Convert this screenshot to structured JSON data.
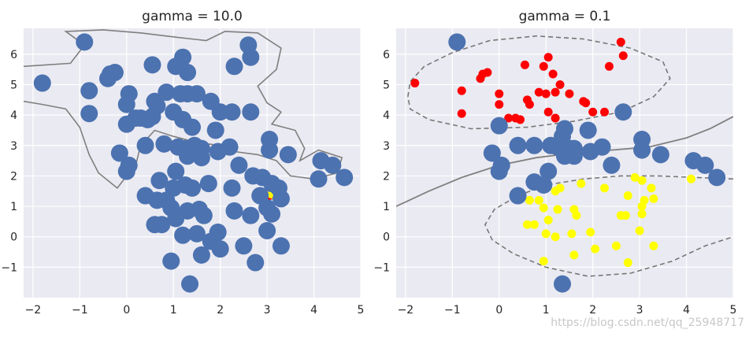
{
  "chart_data": [
    {
      "type": "scatter",
      "title": "gamma = 10.0",
      "xlim": [
        -2.2,
        5.0
      ],
      "ylim": [
        -2.0,
        6.85
      ],
      "xticks": [
        "−2",
        "−1",
        "0",
        "1",
        "2",
        "3",
        "4",
        "5"
      ],
      "xtick_values": [
        -2,
        -1,
        0,
        1,
        2,
        3,
        4,
        5
      ],
      "yticks": [
        "−1",
        "0",
        "1",
        "2",
        "3",
        "4",
        "5",
        "6"
      ],
      "ytick_values": [
        -1,
        0,
        1,
        2,
        3,
        4,
        5,
        6
      ],
      "grid": true,
      "marker_color": "#4c72b0",
      "red_points": [
        [
          3.05,
          1.35
        ]
      ],
      "yellow_points": [
        [
          3.1,
          1.4
        ]
      ],
      "boundary": [
        [
          -2.2,
          5.6
        ],
        [
          -1.2,
          5.7
        ],
        [
          -0.9,
          6.3
        ],
        [
          -1.3,
          6.75
        ],
        [
          -0.5,
          6.8
        ],
        [
          0.3,
          6.7
        ],
        [
          1.1,
          6.55
        ],
        [
          1.7,
          6.45
        ],
        [
          2.1,
          6.75
        ],
        [
          2.8,
          6.7
        ],
        [
          3.3,
          6.2
        ],
        [
          3.2,
          5.5
        ],
        [
          2.8,
          4.95
        ],
        [
          3.0,
          4.4
        ],
        [
          3.3,
          4.1
        ],
        [
          3.1,
          3.7
        ],
        [
          3.6,
          3.5
        ],
        [
          3.8,
          2.9
        ],
        [
          3.7,
          2.5
        ],
        [
          4.1,
          2.85
        ],
        [
          4.6,
          2.6
        ],
        [
          4.5,
          2.1
        ],
        [
          4.0,
          1.9
        ],
        [
          3.5,
          2.0
        ],
        [
          3.2,
          2.5
        ],
        [
          2.8,
          2.7
        ],
        [
          2.3,
          2.8
        ],
        [
          2.0,
          3.0
        ],
        [
          1.5,
          3.1
        ],
        [
          1.0,
          3.3
        ],
        [
          0.6,
          3.5
        ],
        [
          0.3,
          3.0
        ],
        [
          0.2,
          2.4
        ],
        [
          -0.2,
          1.6
        ],
        [
          -0.6,
          2.1
        ],
        [
          -0.8,
          2.7
        ],
        [
          -1.0,
          3.6
        ],
        [
          -1.3,
          4.2
        ],
        [
          -1.8,
          4.35
        ],
        [
          -2.2,
          4.45
        ]
      ],
      "blue_points": [
        [
          -0.9,
          6.4
        ],
        [
          -0.35,
          5.35
        ],
        [
          -0.25,
          5.4
        ],
        [
          -0.4,
          5.2
        ],
        [
          -1.8,
          5.05
        ],
        [
          -0.8,
          4.8
        ],
        [
          0.55,
          5.65
        ],
        [
          1.2,
          5.9
        ],
        [
          1.05,
          5.6
        ],
        [
          1.3,
          5.4
        ],
        [
          1.5,
          4.7
        ],
        [
          1.15,
          4.7
        ],
        [
          0.85,
          4.75
        ],
        [
          0.05,
          4.7
        ],
        [
          0.0,
          4.35
        ],
        [
          0.6,
          4.45
        ],
        [
          0.65,
          4.3
        ],
        [
          1.0,
          4.1
        ],
        [
          1.3,
          4.7
        ],
        [
          1.8,
          4.45
        ],
        [
          2.0,
          4.1
        ],
        [
          2.25,
          4.1
        ],
        [
          2.65,
          4.1
        ],
        [
          2.6,
          6.3
        ],
        [
          2.65,
          5.9
        ],
        [
          2.3,
          5.6
        ],
        [
          -0.8,
          4.05
        ],
        [
          0.0,
          3.7
        ],
        [
          0.2,
          3.9
        ],
        [
          0.3,
          3.9
        ],
        [
          0.45,
          3.85
        ],
        [
          0.55,
          3.95
        ],
        [
          1.2,
          3.85
        ],
        [
          1.4,
          3.6
        ],
        [
          1.9,
          3.5
        ],
        [
          3.05,
          3.2
        ],
        [
          3.05,
          2.85
        ],
        [
          3.45,
          2.7
        ],
        [
          2.2,
          2.95
        ],
        [
          1.95,
          2.8
        ],
        [
          1.6,
          2.9
        ],
        [
          1.45,
          3.0
        ],
        [
          1.25,
          2.9
        ],
        [
          1.1,
          2.95
        ],
        [
          0.8,
          3.05
        ],
        [
          0.4,
          3.0
        ],
        [
          1.3,
          2.65
        ],
        [
          1.6,
          2.6
        ],
        [
          -0.15,
          2.75
        ],
        [
          0.05,
          2.35
        ],
        [
          0.0,
          2.15
        ],
        [
          0.7,
          1.85
        ],
        [
          1.05,
          2.15
        ],
        [
          1.0,
          1.6
        ],
        [
          1.25,
          1.7
        ],
        [
          1.4,
          1.6
        ],
        [
          1.75,
          1.75
        ],
        [
          2.25,
          1.6
        ],
        [
          2.4,
          2.35
        ],
        [
          2.7,
          2.0
        ],
        [
          3.1,
          1.75
        ],
        [
          3.25,
          1.6
        ],
        [
          2.9,
          1.95
        ],
        [
          2.85,
          1.35
        ],
        [
          3.3,
          1.25
        ],
        [
          3.0,
          0.95
        ],
        [
          3.1,
          0.75
        ],
        [
          2.65,
          0.7
        ],
        [
          2.3,
          0.85
        ],
        [
          1.55,
          0.9
        ],
        [
          1.65,
          0.7
        ],
        [
          1.3,
          0.85
        ],
        [
          1.05,
          0.6
        ],
        [
          0.95,
          0.95
        ],
        [
          0.85,
          1.2
        ],
        [
          0.65,
          1.2
        ],
        [
          0.4,
          1.35
        ],
        [
          0.6,
          0.4
        ],
        [
          0.75,
          0.4
        ],
        [
          1.5,
          0.1
        ],
        [
          1.95,
          0.15
        ],
        [
          1.8,
          -0.15
        ],
        [
          2.0,
          -0.4
        ],
        [
          2.5,
          -0.3
        ],
        [
          3.0,
          0.2
        ],
        [
          3.3,
          -0.3
        ],
        [
          1.2,
          0.05
        ],
        [
          1.6,
          -0.6
        ],
        [
          0.95,
          -0.8
        ],
        [
          2.75,
          -0.85
        ],
        [
          1.35,
          -1.55
        ],
        [
          4.15,
          2.5
        ],
        [
          4.4,
          2.35
        ],
        [
          4.65,
          1.95
        ],
        [
          4.1,
          1.9
        ]
      ]
    },
    {
      "type": "scatter",
      "title": "gamma = 0.1",
      "xlim": [
        -2.2,
        5.0
      ],
      "ylim": [
        -2.0,
        6.85
      ],
      "xticks": [
        "−2",
        "−1",
        "0",
        "1",
        "2",
        "3",
        "4",
        "5"
      ],
      "xtick_values": [
        -2,
        -1,
        0,
        1,
        2,
        3,
        4,
        5
      ],
      "yticks": [
        "−1",
        "0",
        "1",
        "2",
        "3",
        "4",
        "5",
        "6"
      ],
      "ytick_values": [
        -1,
        0,
        1,
        2,
        3,
        4,
        5,
        6
      ],
      "grid": true,
      "marker_color": "#4c72b0",
      "red_points": [
        [
          -1.8,
          5.05
        ],
        [
          -0.8,
          4.8
        ],
        [
          -0.35,
          5.35
        ],
        [
          -0.25,
          5.4
        ],
        [
          -0.4,
          5.2
        ],
        [
          0.0,
          4.7
        ],
        [
          0.0,
          4.35
        ],
        [
          0.55,
          5.65
        ],
        [
          0.6,
          4.5
        ],
        [
          0.65,
          4.35
        ],
        [
          0.95,
          5.6
        ],
        [
          1.05,
          5.9
        ],
        [
          1.15,
          5.35
        ],
        [
          1.3,
          5.0
        ],
        [
          1.5,
          4.7
        ],
        [
          0.85,
          4.75
        ],
        [
          1.0,
          4.7
        ],
        [
          1.2,
          4.75
        ],
        [
          1.05,
          4.1
        ],
        [
          1.8,
          4.45
        ],
        [
          1.85,
          4.4
        ],
        [
          2.0,
          4.1
        ],
        [
          2.25,
          4.1
        ],
        [
          2.35,
          5.6
        ],
        [
          2.6,
          6.4
        ],
        [
          2.65,
          5.95
        ],
        [
          -0.8,
          4.05
        ],
        [
          0.2,
          3.9
        ],
        [
          0.35,
          3.9
        ],
        [
          0.45,
          3.85
        ],
        [
          1.2,
          3.9
        ]
      ],
      "yellow_points": [
        [
          4.1,
          1.9
        ],
        [
          2.9,
          1.95
        ],
        [
          3.05,
          1.85
        ],
        [
          2.25,
          1.6
        ],
        [
          1.75,
          1.75
        ],
        [
          1.3,
          1.6
        ],
        [
          1.2,
          1.5
        ],
        [
          2.75,
          1.35
        ],
        [
          3.3,
          1.25
        ],
        [
          3.1,
          1.2
        ],
        [
          3.05,
          1.0
        ],
        [
          3.05,
          0.75
        ],
        [
          2.7,
          0.7
        ],
        [
          2.6,
          0.7
        ],
        [
          1.6,
          0.9
        ],
        [
          1.65,
          0.7
        ],
        [
          1.25,
          0.9
        ],
        [
          1.05,
          0.55
        ],
        [
          0.95,
          0.95
        ],
        [
          0.85,
          1.2
        ],
        [
          0.65,
          1.2
        ],
        [
          0.75,
          0.4
        ],
        [
          0.6,
          0.4
        ],
        [
          1.55,
          0.1
        ],
        [
          1.95,
          0.15
        ],
        [
          3.0,
          0.2
        ],
        [
          1.2,
          0.0
        ],
        [
          1.0,
          0.1
        ],
        [
          2.05,
          -0.4
        ],
        [
          2.5,
          -0.3
        ],
        [
          3.3,
          -0.3
        ],
        [
          1.6,
          -0.6
        ],
        [
          0.95,
          -0.8
        ],
        [
          2.75,
          -0.85
        ],
        [
          3.25,
          1.6
        ]
      ],
      "blue_points": [
        [
          -0.9,
          6.4
        ],
        [
          2.65,
          4.1
        ],
        [
          0.0,
          3.65
        ],
        [
          3.05,
          3.2
        ],
        [
          1.9,
          3.5
        ],
        [
          1.4,
          3.55
        ],
        [
          1.35,
          3.3
        ],
        [
          0.4,
          3.0
        ],
        [
          0.75,
          3.0
        ],
        [
          1.1,
          3.0
        ],
        [
          1.25,
          2.95
        ],
        [
          1.5,
          2.9
        ],
        [
          1.6,
          2.9
        ],
        [
          1.95,
          2.8
        ],
        [
          2.2,
          2.95
        ],
        [
          3.05,
          2.85
        ],
        [
          3.45,
          2.7
        ],
        [
          1.4,
          2.65
        ],
        [
          1.6,
          2.65
        ],
        [
          -0.15,
          2.75
        ],
        [
          0.05,
          2.35
        ],
        [
          0.0,
          2.15
        ],
        [
          2.4,
          2.35
        ],
        [
          4.15,
          2.5
        ],
        [
          4.4,
          2.35
        ],
        [
          4.65,
          1.95
        ],
        [
          1.05,
          2.15
        ],
        [
          0.75,
          1.8
        ],
        [
          0.95,
          1.7
        ],
        [
          0.4,
          1.35
        ],
        [
          1.35,
          -1.55
        ]
      ],
      "decision_line": [
        [
          -2.2,
          1.0
        ],
        [
          -1.5,
          1.5
        ],
        [
          -0.8,
          1.95
        ],
        [
          0.0,
          2.35
        ],
        [
          0.8,
          2.6
        ],
        [
          1.6,
          2.75
        ],
        [
          2.4,
          2.85
        ],
        [
          3.2,
          2.95
        ],
        [
          4.0,
          3.25
        ],
        [
          4.5,
          3.55
        ],
        [
          5.0,
          3.95
        ]
      ],
      "margin_upper": [
        [
          -1.95,
          4.6
        ],
        [
          -1.9,
          5.1
        ],
        [
          -1.6,
          5.6
        ],
        [
          -1.0,
          6.05
        ],
        [
          -0.2,
          6.45
        ],
        [
          0.8,
          6.6
        ],
        [
          1.8,
          6.5
        ],
        [
          2.8,
          6.2
        ],
        [
          3.5,
          5.75
        ],
        [
          3.65,
          5.2
        ],
        [
          3.3,
          4.6
        ],
        [
          2.6,
          4.1
        ],
        [
          1.6,
          3.8
        ],
        [
          0.6,
          3.6
        ],
        [
          -0.6,
          3.55
        ],
        [
          -1.5,
          3.85
        ],
        [
          -1.9,
          4.2
        ],
        [
          -1.95,
          4.6
        ]
      ],
      "margin_lower": [
        [
          5.0,
          1.9
        ],
        [
          4.2,
          1.95
        ],
        [
          3.4,
          2.0
        ],
        [
          2.6,
          2.0
        ],
        [
          1.8,
          1.9
        ],
        [
          1.0,
          1.7
        ],
        [
          0.4,
          1.35
        ],
        [
          -0.1,
          0.9
        ],
        [
          -0.3,
          0.4
        ],
        [
          -0.15,
          -0.1
        ],
        [
          0.3,
          -0.55
        ],
        [
          1.0,
          -1.0
        ],
        [
          1.9,
          -1.3
        ],
        [
          2.8,
          -1.2
        ],
        [
          3.7,
          -0.8
        ],
        [
          4.4,
          -0.3
        ],
        [
          5.0,
          0.0
        ]
      ]
    }
  ],
  "watermark": "https://blog.csdn.net/qq_25948717"
}
